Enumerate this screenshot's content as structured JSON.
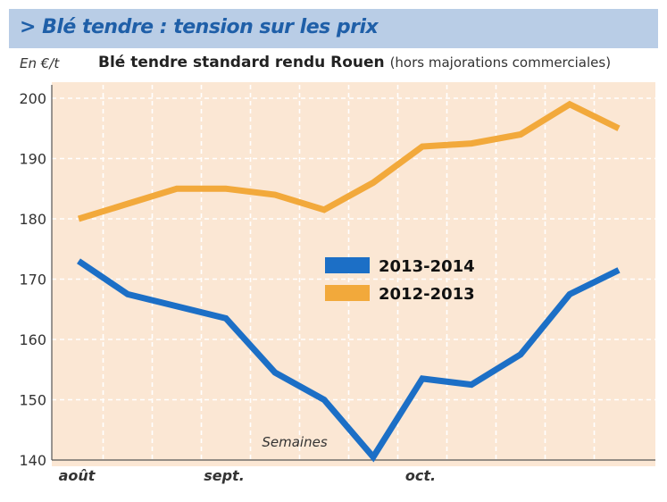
{
  "header": {
    "title": "> Blé tendre : tension sur les prix"
  },
  "colors": {
    "banner_bg": "#b9cde6",
    "title_color": "#1f5fa8",
    "plot_bg": "#fbe7d4",
    "series_2013_2014": "#1c6fc6",
    "series_2012_2013": "#f2a93b"
  },
  "chart_data": {
    "type": "line",
    "title": "Blé tendre standard rendu Rouen",
    "subtitle": "(hors majorations commerciales)",
    "ylabel": "En €/t",
    "xlabel": "Semaines",
    "ylim": [
      140,
      200
    ],
    "yticks": [
      140,
      150,
      160,
      170,
      180,
      190,
      200
    ],
    "grid": true,
    "legend_position": "center",
    "x": [
      1,
      2,
      3,
      4,
      5,
      6,
      7,
      8,
      9,
      10,
      11,
      12
    ],
    "month_labels": [
      {
        "label": "août",
        "x": 1
      },
      {
        "label": "sept.",
        "x": 4
      },
      {
        "label": "oct.",
        "x": 8
      }
    ],
    "series": [
      {
        "name": "2013-2014",
        "color": "#1c6fc6",
        "values": [
          173,
          167.5,
          165.5,
          163.5,
          154.5,
          150,
          140.5,
          153.5,
          152.5,
          157.5,
          167.5,
          171.5
        ]
      },
      {
        "name": "2012-2013",
        "color": "#f2a93b",
        "values": [
          180,
          182.5,
          185,
          185,
          184,
          181.5,
          186,
          192,
          192.5,
          194,
          199,
          195
        ]
      }
    ]
  }
}
